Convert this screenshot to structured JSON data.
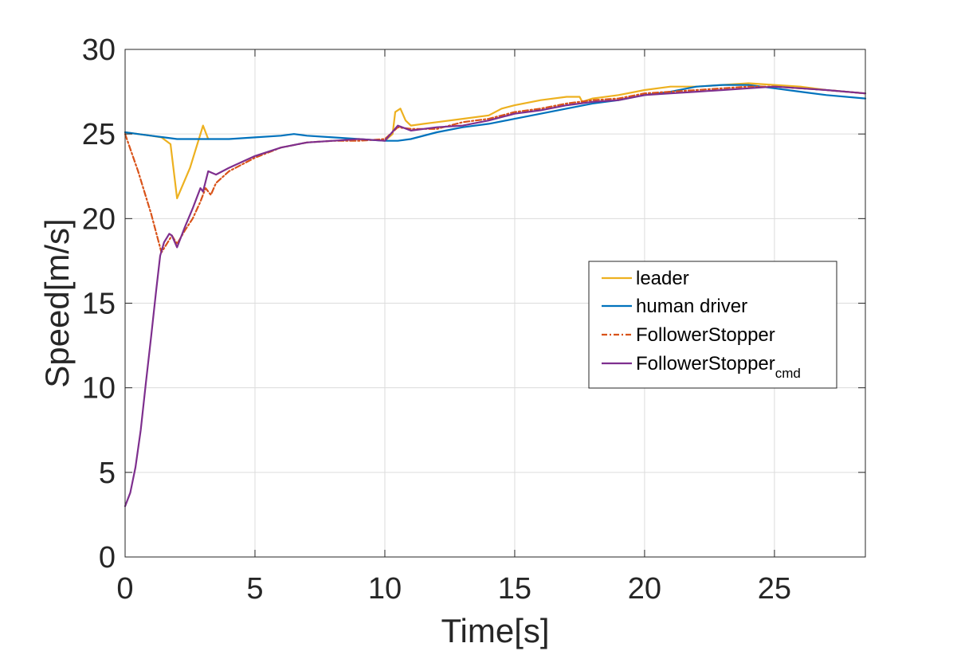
{
  "chart_data": {
    "type": "line",
    "xlabel": "Time[s]",
    "ylabel": "Speed[m/s]",
    "xlim": [
      0,
      28.5
    ],
    "ylim": [
      0,
      30
    ],
    "xticks": [
      0,
      5,
      10,
      15,
      20,
      25
    ],
    "yticks": [
      0,
      5,
      10,
      15,
      20,
      25,
      30
    ],
    "grid": true,
    "legend_position": "center-right",
    "series": [
      {
        "name": "leader",
        "color": "#EDB120",
        "style": "solid",
        "segments": [
          [
            [
              0,
              25.1
            ],
            [
              0.5,
              25.0
            ],
            [
              1.0,
              24.9
            ],
            [
              1.4,
              24.8
            ],
            [
              1.75,
              24.4
            ],
            [
              2.0,
              21.2
            ],
            [
              2.5,
              23.0
            ],
            [
              3.0,
              25.5
            ],
            [
              3.2,
              24.7
            ]
          ],
          [
            [
              10.0,
              24.6
            ],
            [
              10.3,
              25.0
            ],
            [
              10.4,
              26.3
            ],
            [
              10.6,
              26.5
            ],
            [
              10.8,
              25.8
            ],
            [
              11.0,
              25.5
            ],
            [
              11.5,
              25.6
            ],
            [
              12.0,
              25.7
            ],
            [
              13.0,
              25.9
            ],
            [
              14.0,
              26.1
            ],
            [
              14.5,
              26.5
            ],
            [
              15.0,
              26.7
            ],
            [
              16.0,
              27.0
            ],
            [
              17.0,
              27.2
            ],
            [
              17.5,
              27.2
            ],
            [
              17.6,
              26.9
            ],
            [
              18.0,
              27.1
            ],
            [
              19.0,
              27.3
            ],
            [
              20.0,
              27.6
            ],
            [
              21.0,
              27.8
            ],
            [
              22.0,
              27.8
            ],
            [
              23.0,
              27.9
            ],
            [
              24.0,
              28.0
            ],
            [
              25.0,
              27.9
            ],
            [
              26.0,
              27.8
            ],
            [
              27.0,
              27.6
            ],
            [
              28.5,
              27.4
            ]
          ]
        ]
      },
      {
        "name": "human driver",
        "color": "#0072BD",
        "style": "solid",
        "segments": [
          [
            [
              0,
              25.1
            ],
            [
              0.5,
              25.0
            ],
            [
              1.0,
              24.9
            ],
            [
              1.5,
              24.8
            ],
            [
              2.0,
              24.7
            ],
            [
              3.0,
              24.7
            ],
            [
              4.0,
              24.7
            ],
            [
              5.0,
              24.8
            ],
            [
              6.0,
              24.9
            ],
            [
              6.5,
              25.0
            ],
            [
              7.0,
              24.9
            ],
            [
              8.0,
              24.8
            ],
            [
              9.0,
              24.7
            ],
            [
              10.0,
              24.6
            ],
            [
              10.5,
              24.6
            ],
            [
              11.0,
              24.7
            ],
            [
              12.0,
              25.1
            ],
            [
              13.0,
              25.4
            ],
            [
              14.0,
              25.6
            ],
            [
              15.0,
              25.9
            ],
            [
              16.0,
              26.2
            ],
            [
              17.0,
              26.5
            ],
            [
              18.0,
              26.8
            ],
            [
              19.0,
              27.0
            ],
            [
              20.0,
              27.3
            ],
            [
              21.0,
              27.5
            ],
            [
              22.0,
              27.8
            ],
            [
              23.0,
              27.9
            ],
            [
              24.0,
              27.9
            ],
            [
              25.0,
              27.7
            ],
            [
              26.0,
              27.5
            ],
            [
              27.0,
              27.3
            ],
            [
              28.5,
              27.1
            ]
          ]
        ]
      },
      {
        "name": "FollowerStopper",
        "color": "#D95319",
        "style": "dashdot",
        "segments": [
          [
            [
              0,
              25.0
            ],
            [
              0.5,
              22.8
            ],
            [
              1.0,
              20.3
            ],
            [
              1.4,
              18.0
            ],
            [
              1.6,
              18.5
            ],
            [
              1.8,
              19.0
            ],
            [
              2.0,
              18.5
            ],
            [
              2.3,
              19.3
            ],
            [
              2.6,
              20.0
            ],
            [
              2.9,
              21.0
            ],
            [
              3.1,
              21.8
            ],
            [
              3.3,
              21.4
            ],
            [
              3.5,
              22.1
            ],
            [
              4.0,
              22.8
            ],
            [
              5.0,
              23.6
            ],
            [
              6.0,
              24.2
            ],
            [
              7.0,
              24.5
            ],
            [
              8.0,
              24.6
            ],
            [
              9.0,
              24.6
            ],
            [
              10.0,
              24.7
            ],
            [
              10.5,
              25.4
            ],
            [
              11.0,
              25.3
            ],
            [
              12.0,
              25.3
            ],
            [
              13.0,
              25.7
            ],
            [
              14.0,
              25.9
            ],
            [
              15.0,
              26.3
            ],
            [
              16.0,
              26.5
            ],
            [
              17.0,
              26.8
            ],
            [
              18.0,
              27.0
            ],
            [
              19.0,
              27.1
            ],
            [
              20.0,
              27.4
            ],
            [
              21.0,
              27.5
            ],
            [
              22.0,
              27.6
            ],
            [
              23.0,
              27.7
            ],
            [
              24.0,
              27.8
            ],
            [
              25.0,
              27.8
            ],
            [
              26.0,
              27.7
            ],
            [
              27.0,
              27.6
            ],
            [
              28.5,
              27.4
            ]
          ]
        ]
      },
      {
        "name": "FollowerStopper",
        "name_sub": "cmd",
        "color": "#7E2F8E",
        "style": "solid",
        "segments": [
          [
            [
              0,
              3.0
            ],
            [
              0.2,
              3.8
            ],
            [
              0.4,
              5.3
            ],
            [
              0.6,
              7.5
            ],
            [
              0.8,
              10.3
            ],
            [
              1.0,
              13.0
            ],
            [
              1.2,
              15.8
            ],
            [
              1.35,
              17.8
            ],
            [
              1.5,
              18.6
            ],
            [
              1.7,
              19.1
            ],
            [
              1.8,
              19.0
            ],
            [
              2.0,
              18.3
            ],
            [
              2.3,
              19.5
            ],
            [
              2.6,
              20.6
            ],
            [
              2.9,
              21.8
            ],
            [
              3.0,
              21.6
            ],
            [
              3.2,
              22.8
            ],
            [
              3.5,
              22.6
            ],
            [
              4.0,
              23.0
            ],
            [
              5.0,
              23.7
            ],
            [
              6.0,
              24.2
            ],
            [
              7.0,
              24.5
            ],
            [
              8.0,
              24.6
            ],
            [
              9.0,
              24.7
            ],
            [
              10.0,
              24.6
            ],
            [
              10.5,
              25.5
            ],
            [
              11.0,
              25.2
            ],
            [
              12.0,
              25.4
            ],
            [
              13.0,
              25.5
            ],
            [
              14.0,
              25.8
            ],
            [
              15.0,
              26.2
            ],
            [
              16.0,
              26.4
            ],
            [
              17.0,
              26.7
            ],
            [
              18.0,
              26.9
            ],
            [
              19.0,
              27.0
            ],
            [
              20.0,
              27.3
            ],
            [
              21.0,
              27.4
            ],
            [
              22.0,
              27.5
            ],
            [
              23.0,
              27.6
            ],
            [
              24.0,
              27.7
            ],
            [
              25.0,
              27.8
            ],
            [
              26.0,
              27.7
            ],
            [
              27.0,
              27.6
            ],
            [
              28.5,
              27.4
            ]
          ]
        ]
      }
    ]
  }
}
